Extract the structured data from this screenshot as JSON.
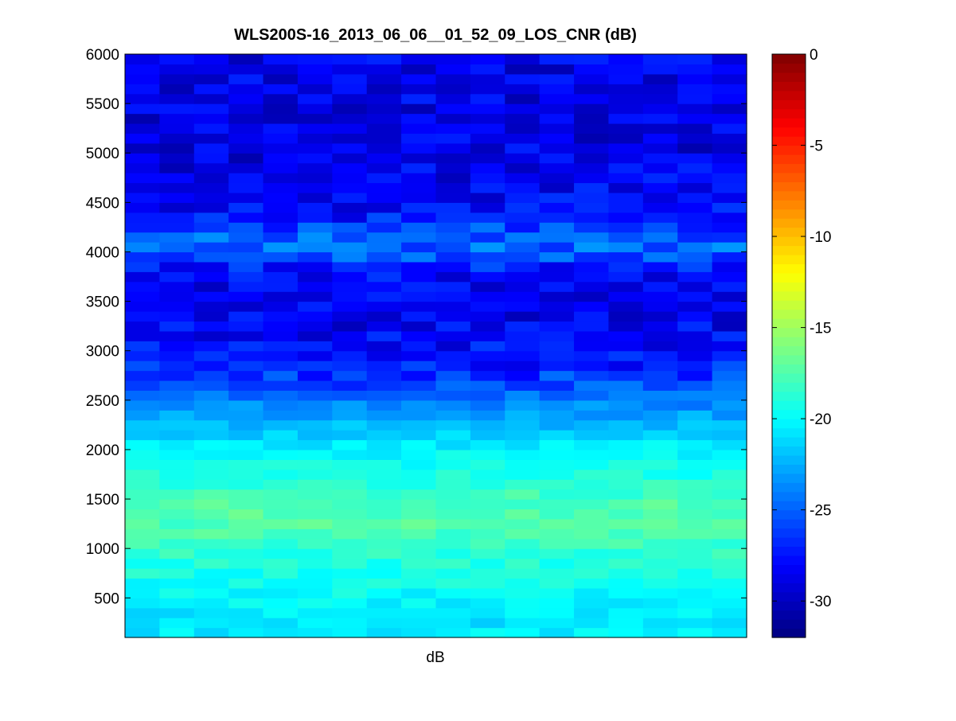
{
  "chart_data": {
    "type": "heatmap",
    "title": "WLS200S-16_2013_06_06__01_52_09_LOS_CNR (dB)",
    "xlabel": "dB",
    "ylabel": "",
    "ylim": [
      100,
      6000
    ],
    "yticks": [
      500,
      1000,
      1500,
      2000,
      2500,
      3000,
      3500,
      4000,
      4500,
      5000,
      5500,
      6000
    ],
    "x_columns": 18,
    "grid": false,
    "colormap": "jet",
    "colorbar": {
      "clim": [
        -32,
        0
      ],
      "ticks": [
        0,
        -5,
        -10,
        -15,
        -20,
        -25,
        -30
      ]
    },
    "y_profile": [
      {
        "y": 100,
        "cnr": -20.5
      },
      {
        "y": 300,
        "cnr": -20.8
      },
      {
        "y": 500,
        "cnr": -20.0
      },
      {
        "y": 800,
        "cnr": -19.2
      },
      {
        "y": 1000,
        "cnr": -18.5
      },
      {
        "y": 1200,
        "cnr": -17.6
      },
      {
        "y": 1400,
        "cnr": -17.4
      },
      {
        "y": 1600,
        "cnr": -18.3
      },
      {
        "y": 1800,
        "cnr": -19.6
      },
      {
        "y": 2000,
        "cnr": -20.2
      },
      {
        "y": 2200,
        "cnr": -21.8
      },
      {
        "y": 2400,
        "cnr": -23.2
      },
      {
        "y": 2600,
        "cnr": -25.0
      },
      {
        "y": 2800,
        "cnr": -26.8
      },
      {
        "y": 3000,
        "cnr": -27.8
      },
      {
        "y": 3400,
        "cnr": -28.6
      },
      {
        "y": 3800,
        "cnr": -28.0
      },
      {
        "y": 4000,
        "cnr": -24.8
      },
      {
        "y": 4200,
        "cnr": -25.4
      },
      {
        "y": 4400,
        "cnr": -28.0
      },
      {
        "y": 5000,
        "cnr": -28.8
      },
      {
        "y": 6000,
        "cnr": -28.6
      }
    ],
    "cell_height_m": 100
  }
}
